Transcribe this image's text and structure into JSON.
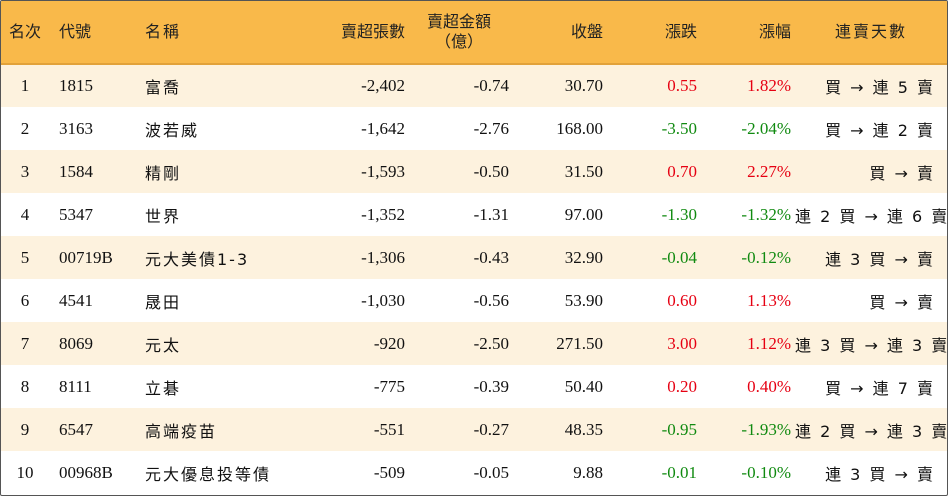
{
  "headers": {
    "rank": "名次",
    "code": "代號",
    "name": "名稱",
    "sell_volume": "賣超張數",
    "sell_amount_line1": "賣超金額",
    "sell_amount_line2": "（億）",
    "close": "收盤",
    "change": "漲跌",
    "change_pct": "漲幅",
    "streak": "連賣天數"
  },
  "colors": {
    "header_bg": "#f9b94a",
    "row_alt_bg": "#fdf2de",
    "up": "#e60012",
    "down": "#108a10"
  },
  "rows": [
    {
      "rank": "1",
      "code": "1815",
      "name": "富喬",
      "sell_volume": "-2,402",
      "sell_amount": "-0.74",
      "close": "30.70",
      "change": "0.55",
      "change_pct": "1.82%",
      "dir": "up",
      "streak": "買 → 連 5 賣"
    },
    {
      "rank": "2",
      "code": "3163",
      "name": "波若威",
      "sell_volume": "-1,642",
      "sell_amount": "-2.76",
      "close": "168.00",
      "change": "-3.50",
      "change_pct": "-2.04%",
      "dir": "down",
      "streak": "買 → 連 2 賣"
    },
    {
      "rank": "3",
      "code": "1584",
      "name": "精剛",
      "sell_volume": "-1,593",
      "sell_amount": "-0.50",
      "close": "31.50",
      "change": "0.70",
      "change_pct": "2.27%",
      "dir": "up",
      "streak": "買 → 賣"
    },
    {
      "rank": "4",
      "code": "5347",
      "name": "世界",
      "sell_volume": "-1,352",
      "sell_amount": "-1.31",
      "close": "97.00",
      "change": "-1.30",
      "change_pct": "-1.32%",
      "dir": "down",
      "streak": "連 2 買 → 連 6 賣"
    },
    {
      "rank": "5",
      "code": "00719B",
      "name": "元大美債1-3",
      "sell_volume": "-1,306",
      "sell_amount": "-0.43",
      "close": "32.90",
      "change": "-0.04",
      "change_pct": "-0.12%",
      "dir": "down",
      "streak": "連 3 買 → 賣"
    },
    {
      "rank": "6",
      "code": "4541",
      "name": "晟田",
      "sell_volume": "-1,030",
      "sell_amount": "-0.56",
      "close": "53.90",
      "change": "0.60",
      "change_pct": "1.13%",
      "dir": "up",
      "streak": "買 → 賣"
    },
    {
      "rank": "7",
      "code": "8069",
      "name": "元太",
      "sell_volume": "-920",
      "sell_amount": "-2.50",
      "close": "271.50",
      "change": "3.00",
      "change_pct": "1.12%",
      "dir": "up",
      "streak": "連 3 買 → 連 3 賣"
    },
    {
      "rank": "8",
      "code": "8111",
      "name": "立碁",
      "sell_volume": "-775",
      "sell_amount": "-0.39",
      "close": "50.40",
      "change": "0.20",
      "change_pct": "0.40%",
      "dir": "up",
      "streak": "買 → 連 7 賣"
    },
    {
      "rank": "9",
      "code": "6547",
      "name": "高端疫苗",
      "sell_volume": "-551",
      "sell_amount": "-0.27",
      "close": "48.35",
      "change": "-0.95",
      "change_pct": "-1.93%",
      "dir": "down",
      "streak": "連 2 買 → 連 3 賣"
    },
    {
      "rank": "10",
      "code": "00968B",
      "name": "元大優息投等債",
      "sell_volume": "-509",
      "sell_amount": "-0.05",
      "close": "9.88",
      "change": "-0.01",
      "change_pct": "-0.10%",
      "dir": "down",
      "streak": "連 3 買 → 賣"
    }
  ]
}
